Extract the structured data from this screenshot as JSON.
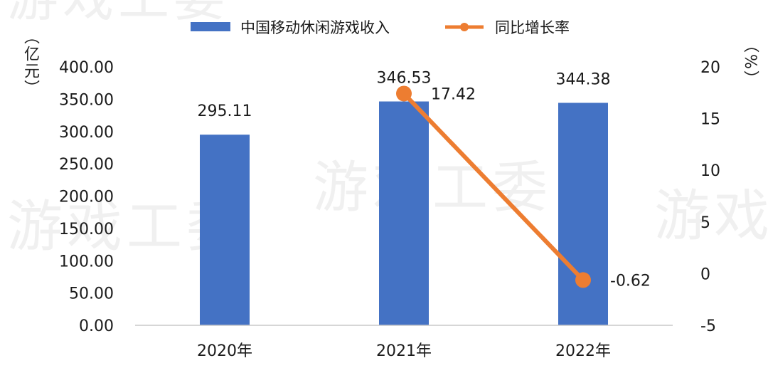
{
  "units": {
    "left": "（亿元）",
    "right": "（%）"
  },
  "watermarks": [
    "游戏工委",
    "游戏工委",
    "游戏工委",
    "游戏工委"
  ],
  "chart_data": {
    "type": "bar",
    "categories": [
      "2020年",
      "2021年",
      "2022年"
    ],
    "series": [
      {
        "name": "中国移动休闲游戏收入",
        "type": "bar",
        "axis": "left",
        "color": "#4472c4",
        "values": [
          295.11,
          346.53,
          344.38
        ],
        "labels": [
          "295.11",
          "346.53",
          "344.38"
        ]
      },
      {
        "name": "同比增长率",
        "type": "line",
        "axis": "right",
        "color": "#ed7d31",
        "values": [
          null,
          17.42,
          -0.62
        ],
        "labels": [
          null,
          "17.42",
          "-0.62"
        ]
      }
    ],
    "y_left": {
      "min": 0,
      "max": 400,
      "ticks": [
        "0.00",
        "50.00",
        "100.00",
        "150.00",
        "200.00",
        "250.00",
        "300.00",
        "350.00",
        "400.00"
      ]
    },
    "y_right": {
      "min": -5,
      "max": 20,
      "ticks": [
        "-5",
        "0",
        "5",
        "10",
        "15",
        "20"
      ]
    },
    "legend_position": "top-center",
    "grid": false
  }
}
